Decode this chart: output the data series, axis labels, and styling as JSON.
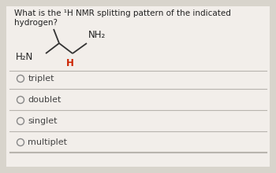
{
  "title": "What is the ¹H NMR splitting pattern of the indicated hydrogen?",
  "title_fontsize": 7.5,
  "bg_color": "#d8d4cc",
  "card_color": "#f0ede8",
  "options": [
    "triplet",
    "doublet",
    "singlet",
    "multiplet"
  ],
  "option_fontsize": 8,
  "circle_color": "#888888",
  "h2n_label": "H₂N",
  "nh2_label": "NH₂",
  "h_label": "H",
  "h_color": "#cc2200",
  "molecule_line_color": "#333333",
  "divider_color": "#b8b4ae"
}
